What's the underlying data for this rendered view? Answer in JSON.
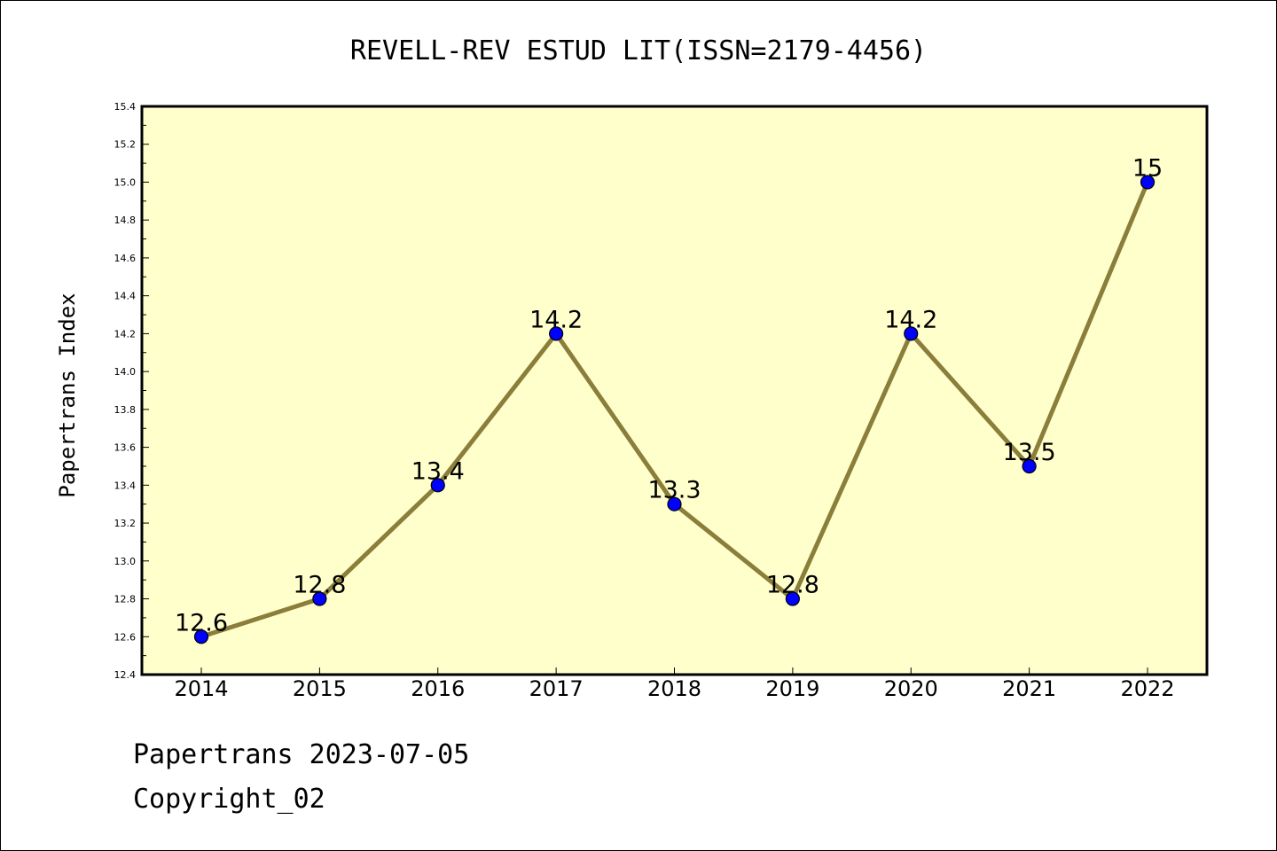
{
  "chart_data": {
    "type": "line",
    "title": "REVELL-REV ESTUD LIT(ISSN=2179-4456)",
    "xlabel": "",
    "ylabel": "Papertrans Index",
    "categories": [
      "2014",
      "2015",
      "2016",
      "2017",
      "2018",
      "2019",
      "2020",
      "2021",
      "2022"
    ],
    "values": [
      12.6,
      12.8,
      13.4,
      14.2,
      13.3,
      12.8,
      14.2,
      13.5,
      15
    ],
    "data_labels": [
      "12.6",
      "12.8",
      "13.4",
      "14.2",
      "13.3",
      "12.8",
      "14.2",
      "13.5",
      "15"
    ],
    "ylim": [
      12.4,
      15.4
    ],
    "yticks": [
      "12.4",
      "12.6",
      "12.8",
      "13.0",
      "13.2",
      "13.4",
      "13.6",
      "13.8",
      "14.0",
      "14.2",
      "14.4",
      "14.6",
      "14.8",
      "15.0",
      "15.2",
      "15.4"
    ],
    "grid": false,
    "colors": {
      "plot_background": "#ffffcc",
      "line": "#8b7d3a",
      "marker_fill": "#0000ff",
      "marker_edge": "#000000"
    }
  },
  "footer": {
    "date_line": "Papertrans 2023-07-05",
    "copyright": "Copyright_02"
  }
}
